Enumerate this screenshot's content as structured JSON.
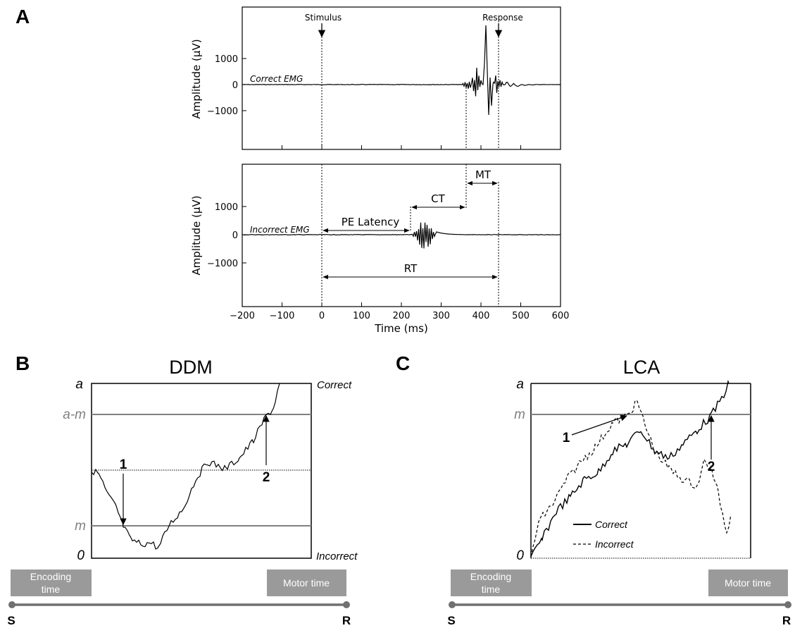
{
  "panelA": {
    "letter": "A",
    "top": {
      "ylabel": "Amplitude (μV)",
      "trace_label": "Correct EMG",
      "stimulus_label": "Stimulus",
      "response_label": "Response",
      "yticks": [
        "1000",
        "0",
        "−1000"
      ]
    },
    "bottom": {
      "ylabel": "Amplitude (μV)",
      "trace_label": "Incorrect EMG",
      "yticks": [
        "1000",
        "0",
        "−1000"
      ],
      "labels": {
        "pe_latency": "PE Latency",
        "ct": "CT",
        "mt": "MT",
        "rt": "RT"
      }
    },
    "xlabel": "Time (ms)",
    "xticks": [
      "−200",
      "−100",
      "0",
      "100",
      "200",
      "300",
      "400",
      "500",
      "600"
    ]
  },
  "panelB": {
    "letter": "B",
    "title": "DDM",
    "levels": {
      "a": "a",
      "a_minus_m": "a-m",
      "m": "m",
      "zero": "0"
    },
    "side_labels": {
      "correct": "Correct",
      "incorrect": "Incorrect"
    },
    "markers": [
      "1",
      "2"
    ]
  },
  "panelC": {
    "letter": "C",
    "title": "LCA",
    "levels": {
      "a": "a",
      "m": "m",
      "zero": "0"
    },
    "markers": [
      "1",
      "2"
    ],
    "legend": {
      "correct": "Correct",
      "incorrect": "Incorrect"
    }
  },
  "timeline": {
    "encoding": [
      "Encoding",
      "time"
    ],
    "motor": "Motor time",
    "start": "S",
    "end": "R"
  },
  "colors": {
    "gray_box": "#9a9a9a",
    "gray_line": "#808080",
    "black": "#000000"
  }
}
